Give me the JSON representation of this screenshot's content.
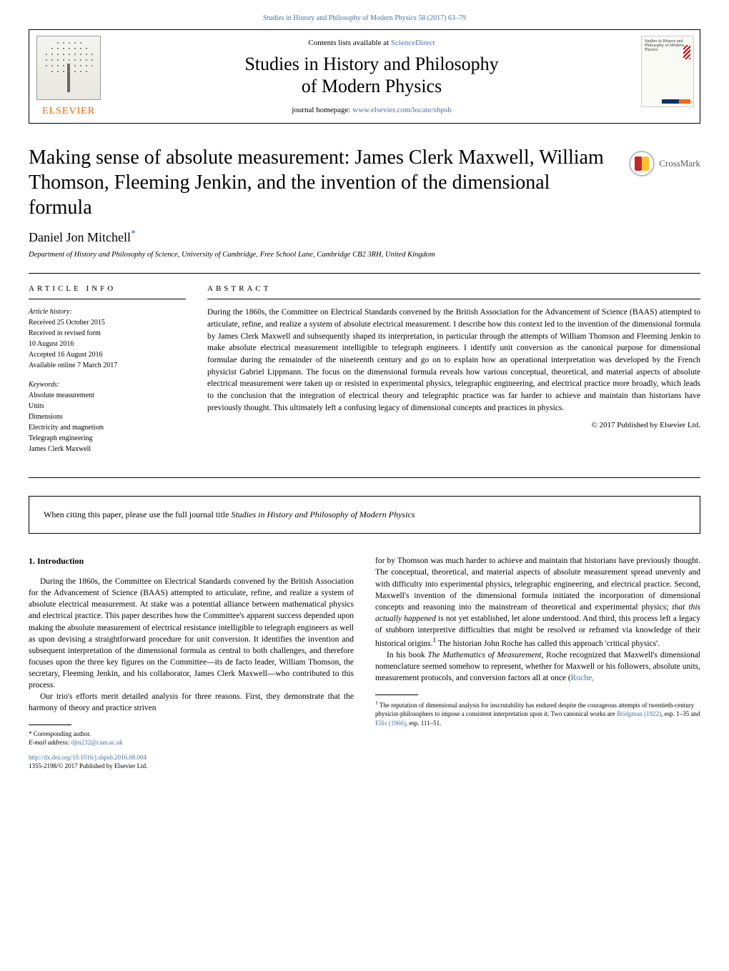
{
  "top_citation": "Studies in History and Philosophy of Modern Physics 58 (2017) 63–79",
  "header": {
    "contents_prefix": "Contents lists available at ",
    "contents_link": "ScienceDirect",
    "journal_title_line1": "Studies in History and Philosophy",
    "journal_title_line2": "of Modern Physics",
    "homepage_prefix": "journal homepage: ",
    "homepage_url": "www.elsevier.com/locate/shpsb",
    "publisher": "ELSEVIER",
    "cover_text": "Studies in History and Philosophy of Modern Physics"
  },
  "crossmark_label": "CrossMark",
  "article": {
    "title": "Making sense of absolute measurement: James Clerk Maxwell, William Thomson, Fleeming Jenkin, and the invention of the dimensional formula",
    "author": "Daniel Jon Mitchell",
    "author_marker": "*",
    "affiliation": "Department of History and Philosophy of Science, University of Cambridge, Free School Lane, Cambridge CB2 3RH, United Kingdom"
  },
  "info": {
    "section_label": "ARTICLE INFO",
    "history_label": "Article history:",
    "received": "Received 25 October 2015",
    "revised1": "Received in revised form",
    "revised2": "10 August 2016",
    "accepted": "Accepted 16 August 2016",
    "online": "Available online 7 March 2017",
    "keywords_label": "Keywords:",
    "keywords": [
      "Absolute measurement",
      "Units",
      "Dimensions",
      "Electricity and magnetism",
      "Telegraph engineering",
      "James Clerk Maxwell"
    ]
  },
  "abstract": {
    "section_label": "ABSTRACT",
    "text": "During the 1860s, the Committee on Electrical Standards convened by the British Association for the Advancement of Science (BAAS) attempted to articulate, refine, and realize a system of absolute electrical measurement. I describe how this context led to the invention of the dimensional formula by James Clerk Maxwell and subsequently shaped its interpretation, in particular through the attempts of William Thomson and Fleeming Jenkin to make absolute electrical measurement intelligible to telegraph engineers. I identify unit conversion as the canonical purpose for dimensional formulae during the remainder of the nineteenth century and go on to explain how an operational interpretation was developed by the French physicist Gabriel Lippmann. The focus on the dimensional formula reveals how various conceptual, theoretical, and material aspects of absolute electrical measurement were taken up or resisted in experimental physics, telegraphic engineering, and electrical practice more broadly, which leads to the conclusion that the integration of electrical theory and telegraphic practice was far harder to achieve and maintain than historians have previously thought. This ultimately left a confusing legacy of dimensional concepts and practices in physics.",
    "copyright": "© 2017 Published by Elsevier Ltd."
  },
  "citation_notice": {
    "prefix": "When citing this paper, please use the full journal title ",
    "title": "Studies in History and Philosophy of Modern Physics"
  },
  "body": {
    "intro_heading": "1.  Introduction",
    "col1_p1": "During the 1860s, the Committee on Electrical Standards convened by the British Association for the Advancement of Science (BAAS) attempted to articulate, refine, and realize a system of absolute electrical measurement. At stake was a potential alliance between mathematical physics and electrical practice. This paper describes how the Committee's apparent success depended upon making the absolute measurement of electrical resistance intelligible to telegraph engineers as well as upon devising a straightforward procedure for unit conversion. It identifies the invention and subsequent interpretation of the dimensional formula as central to both challenges, and therefore focuses upon the three key figures on the Committee—its de facto leader, William Thomson, the secretary, Fleeming Jenkin, and his collaborator, James Clerk Maxwell—who contributed to this process.",
    "col1_p2": "Our trio's efforts merit detailed analysis for three reasons. First, they demonstrate that the harmony of theory and practice striven",
    "col2_p1_a": "for by Thomson was much harder to achieve and maintain that historians have previously thought. The conceptual, theoretical, and material aspects of absolute measurement spread unevenly and with difficulty into experimental physics, telegraphic engineering, and electrical practice. Second, Maxwell's invention of the dimensional formula initiated the incorporation of dimensional concepts and reasoning into the mainstream of theoretical and experimental physics; ",
    "col2_p1_ital": "that this actually happened",
    "col2_p1_b": " is not yet established, let alone understood. And third, this process left a legacy of stubborn interpretive difficulties that might be resolved or reframed via knowledge of their historical origins.",
    "col2_p1_c": " The historian John Roche has called this approach 'critical physics'.",
    "col2_p2_a": "In his book ",
    "col2_p2_ital": "The Mathematics of Measurement",
    "col2_p2_b": ", Roche recognized that Maxwell's dimensional nomenclature seemed somehow to represent, whether for Maxwell or his followers, absolute units, measurement protocols, and conversion factors all at once (",
    "col2_p2_link": "Roche,"
  },
  "footnotes": {
    "corresponding": "* Corresponding author.",
    "email_label": "E-mail address: ",
    "email": "djm232@cam.ac.uk",
    "fn1_num": "1",
    "fn1_a": " The reputation of dimensional analysis for inscrutability has endured despite the courageous attempts of twentieth-century physicist-philosophers to impose a consistent interpretation upon it. Two canonical works are ",
    "fn1_link1": "Bridgman (1922)",
    "fn1_b": ", esp. 1–35 and ",
    "fn1_link2": "Ellis (1966)",
    "fn1_c": ", esp. 111–51."
  },
  "doi": {
    "url": "http://dx.doi.org/10.1016/j.shpsb.2016.08.004",
    "issn_line": "1355-2198/© 2017 Published by Elsevier Ltd."
  },
  "colors": {
    "link": "#4a6ea8",
    "publisher": "#ff6600"
  }
}
